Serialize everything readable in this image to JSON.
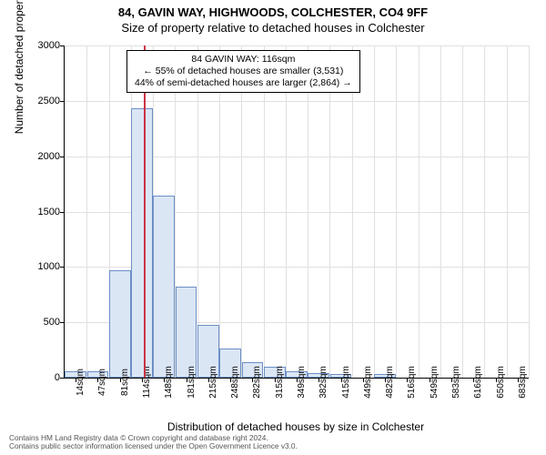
{
  "titles": {
    "main": "84, GAVIN WAY, HIGHWOODS, COLCHESTER, CO4 9FF",
    "sub": "Size of property relative to detached houses in Colchester"
  },
  "chart": {
    "type": "histogram",
    "ylabel": "Number of detached properties",
    "xlabel": "Distribution of detached houses by size in Colchester",
    "ylim": [
      0,
      3000
    ],
    "ytick_step": 500,
    "yticks": [
      0,
      500,
      1000,
      1500,
      2000,
      2500,
      3000
    ],
    "xticks": [
      "14sqm",
      "47sqm",
      "81sqm",
      "114sqm",
      "148sqm",
      "181sqm",
      "215sqm",
      "248sqm",
      "282sqm",
      "315sqm",
      "349sqm",
      "382sqm",
      "415sqm",
      "449sqm",
      "482sqm",
      "516sqm",
      "549sqm",
      "583sqm",
      "616sqm",
      "650sqm",
      "683sqm"
    ],
    "bar_values": [
      60,
      60,
      970,
      2430,
      1640,
      820,
      480,
      260,
      140,
      95,
      55,
      40,
      35,
      0,
      30,
      0,
      0,
      0,
      0,
      0,
      0
    ],
    "bar_color": "#dbe6f5",
    "bar_border": "#6c8fc5",
    "grid_color": "#e0e0e0",
    "background": "#ffffff",
    "ref_line": {
      "value_index": 3.1,
      "color": "#cc3344"
    }
  },
  "annotation": {
    "line1": "84 GAVIN WAY: 116sqm",
    "line2": "← 55% of detached houses are smaller (3,531)",
    "line3": "44% of semi-detached houses are larger (2,864) →"
  },
  "caption": {
    "line1": "Contains HM Land Registry data © Crown copyright and database right 2024.",
    "line2": "Contains public sector information licensed under the Open Government Licence v3.0."
  }
}
